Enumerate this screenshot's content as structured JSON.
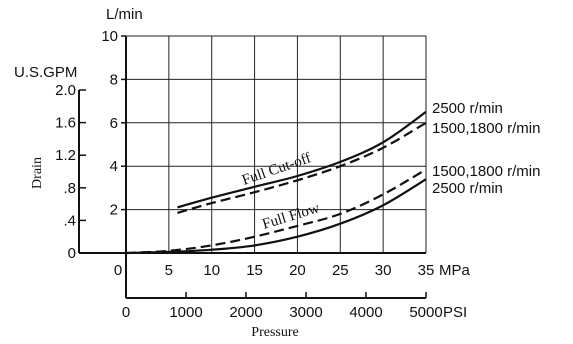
{
  "chart_data": {
    "type": "line",
    "xlabel": "Pressure",
    "x_mpa": {
      "unit": "MPa",
      "range": [
        0,
        35
      ],
      "ticks": [
        "0",
        "5",
        "10",
        "15",
        "20",
        "25",
        "30",
        "35"
      ]
    },
    "x_psi": {
      "unit": "PSI",
      "range": [
        0,
        5000
      ],
      "ticks": [
        "0",
        "1000",
        "2000",
        "3000",
        "4000",
        "5000"
      ]
    },
    "y_lmin": {
      "unit": "L/min",
      "range": [
        0,
        10
      ],
      "ticks": [
        "2",
        "4",
        "6",
        "8",
        "10"
      ]
    },
    "y_gpm": {
      "unit": "U.S.GPM",
      "range": [
        0,
        2.0
      ],
      "ticks": [
        "0",
        ".4",
        ".8",
        "1.2",
        "1.6",
        "2.0"
      ]
    },
    "ylabel": "Drain",
    "grid": true,
    "annotations": {
      "full_cutoff": "Full Cut-off",
      "full_flow": "Full Flow"
    },
    "series": [
      {
        "name": "2500 r/min",
        "group": "Full Cut-off",
        "style": "solid",
        "points": [
          [
            6,
            2.1
          ],
          [
            10,
            2.55
          ],
          [
            15,
            3.05
          ],
          [
            20,
            3.55
          ],
          [
            25,
            4.2
          ],
          [
            30,
            5.1
          ],
          [
            35,
            6.5
          ]
        ]
      },
      {
        "name": "1500,1800 r/min",
        "group": "Full Cut-off",
        "style": "dashed",
        "points": [
          [
            6,
            1.85
          ],
          [
            10,
            2.3
          ],
          [
            15,
            2.8
          ],
          [
            20,
            3.35
          ],
          [
            25,
            4.0
          ],
          [
            30,
            4.85
          ],
          [
            35,
            6.0
          ]
        ]
      },
      {
        "name": "1500,1800 r/min",
        "group": "Full Flow",
        "style": "dashed",
        "points": [
          [
            0,
            0
          ],
          [
            5,
            0.1
          ],
          [
            10,
            0.35
          ],
          [
            15,
            0.75
          ],
          [
            20,
            1.25
          ],
          [
            25,
            1.8
          ],
          [
            30,
            2.7
          ],
          [
            35,
            3.85
          ]
        ]
      },
      {
        "name": "2500 r/min",
        "group": "Full Flow",
        "style": "solid",
        "points": [
          [
            0,
            0
          ],
          [
            5,
            0.05
          ],
          [
            10,
            0.15
          ],
          [
            15,
            0.35
          ],
          [
            20,
            0.75
          ],
          [
            25,
            1.35
          ],
          [
            30,
            2.2
          ],
          [
            35,
            3.4
          ]
        ]
      }
    ]
  }
}
